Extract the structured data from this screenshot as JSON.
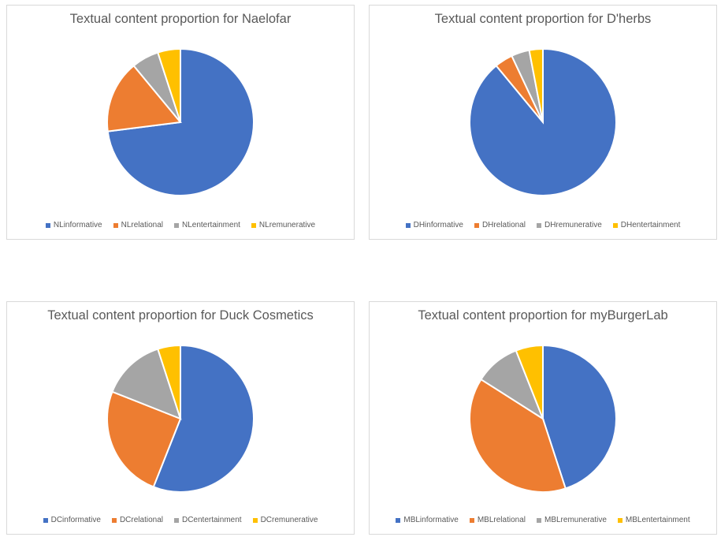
{
  "colors": {
    "blue": "#4472c4",
    "orange": "#ed7d31",
    "gray": "#a5a5a5",
    "yellow": "#ffc000"
  },
  "chart_data": [
    {
      "type": "pie",
      "title": "Textual content proportion for Naelofar",
      "legend_position": "bottom",
      "slices": [
        {
          "label": "NLinformative",
          "value": 73,
          "color": "#4472c4"
        },
        {
          "label": "NLrelational",
          "value": 16,
          "color": "#ed7d31"
        },
        {
          "label": "NLentertainment",
          "value": 6,
          "color": "#a5a5a5"
        },
        {
          "label": "NLremunerative",
          "value": 5,
          "color": "#ffc000"
        }
      ]
    },
    {
      "type": "pie",
      "title": "Textual content proportion for D'herbs",
      "legend_position": "bottom",
      "slices": [
        {
          "label": "DHinformative",
          "value": 89,
          "color": "#4472c4"
        },
        {
          "label": "DHrelational",
          "value": 4,
          "color": "#ed7d31"
        },
        {
          "label": "DHremunerative",
          "value": 4,
          "color": "#a5a5a5"
        },
        {
          "label": "DHentertainment",
          "value": 3,
          "color": "#ffc000"
        }
      ]
    },
    {
      "type": "pie",
      "title": "Textual content proportion for Duck Cosmetics",
      "legend_position": "bottom",
      "slices": [
        {
          "label": "DCinformative",
          "value": 56,
          "color": "#4472c4"
        },
        {
          "label": "DCrelational",
          "value": 25,
          "color": "#ed7d31"
        },
        {
          "label": "DCentertainment",
          "value": 14,
          "color": "#a5a5a5"
        },
        {
          "label": "DCremunerative",
          "value": 5,
          "color": "#ffc000"
        }
      ]
    },
    {
      "type": "pie",
      "title": "Textual content proportion for myBurgerLab",
      "legend_position": "bottom",
      "slices": [
        {
          "label": "MBLinformative",
          "value": 45,
          "color": "#4472c4"
        },
        {
          "label": "MBLrelational",
          "value": 39,
          "color": "#ed7d31"
        },
        {
          "label": "MBLremunerative",
          "value": 10,
          "color": "#a5a5a5"
        },
        {
          "label": "MBLentertainment",
          "value": 6,
          "color": "#ffc000"
        }
      ]
    }
  ]
}
